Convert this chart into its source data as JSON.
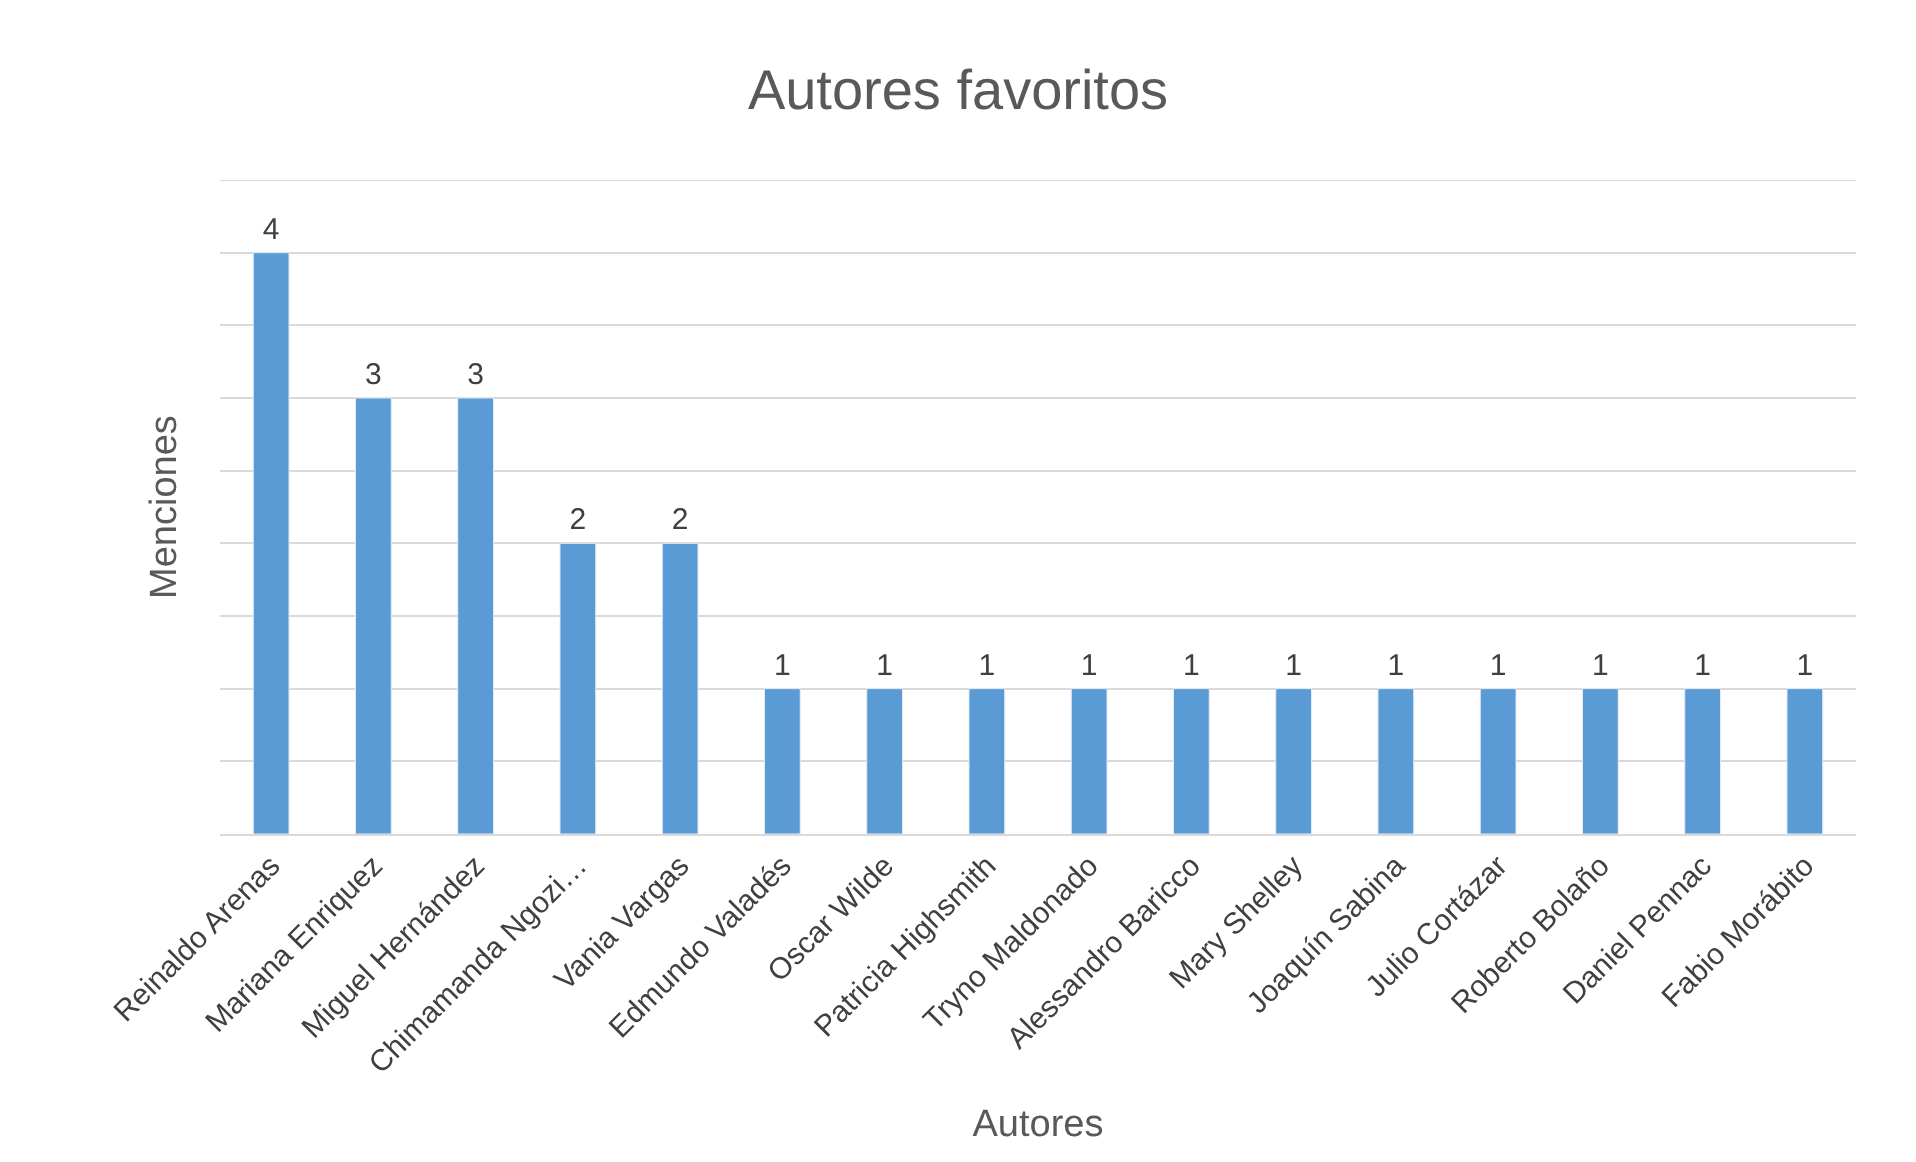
{
  "chart_data": {
    "type": "bar",
    "title": "Autores favoritos",
    "xlabel": "Autores",
    "ylabel": "Menciones",
    "categories": [
      "Reinaldo Arenas",
      "Mariana Enriquez",
      "Miguel Hernández",
      "Chimamanda Ngozi…",
      "Vania Vargas",
      "Edmundo Valadés",
      "Oscar Wilde",
      "Patricia Highsmith",
      "Tryno Maldonado",
      "Alessandro Baricco",
      "Mary Shelley",
      "Joaquín Sabina",
      "Julio Cortázar",
      "Roberto Bolaño",
      "Daniel Pennac",
      "Fabio Morábito"
    ],
    "values": [
      4,
      3,
      3,
      2,
      2,
      1,
      1,
      1,
      1,
      1,
      1,
      1,
      1,
      1,
      1,
      1
    ],
    "color": "#5b9bd5",
    "data_labels": true,
    "grid": "y",
    "legend": false,
    "tick_labels": "x",
    "ylim": [
      0,
      4.5
    ],
    "yticks": [
      {
        "value": 0,
        "label": null
      },
      {
        "value": 0.5,
        "label": null
      },
      {
        "value": 1,
        "label": null
      },
      {
        "value": 1.5,
        "label": null
      },
      {
        "value": 2,
        "label": null
      },
      {
        "value": 2.5,
        "label": null
      },
      {
        "value": 3,
        "label": null
      },
      {
        "value": 3.5,
        "label": null
      },
      {
        "value": 4,
        "label": null
      },
      {
        "value": 4.5,
        "label": null
      }
    ]
  }
}
